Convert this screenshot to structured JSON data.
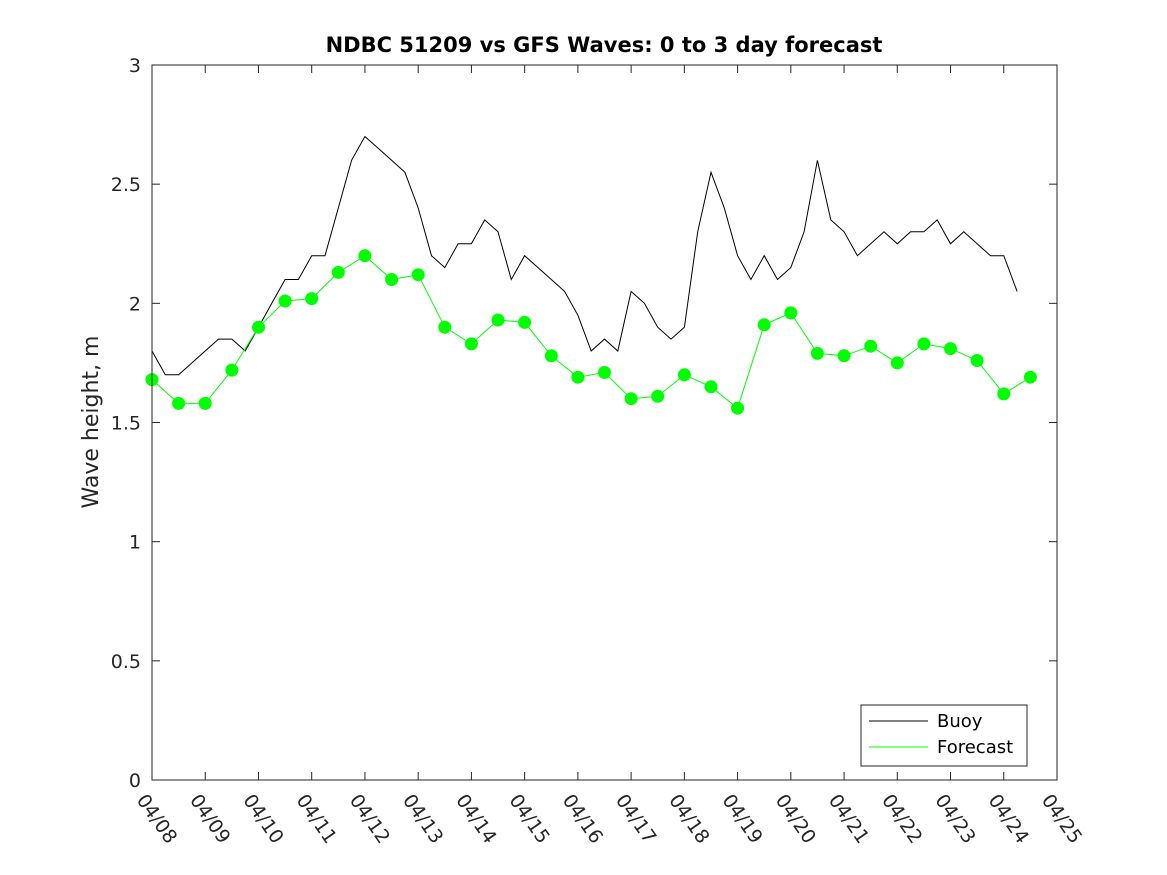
{
  "chart_data": {
    "type": "line",
    "title": "NDBC 51209 vs GFS Waves: 0 to 3 day forecast",
    "xlabel": "",
    "ylabel": "Wave height, m",
    "ylim": [
      0,
      3
    ],
    "xlim": [
      0,
      17
    ],
    "yticks": [
      "0",
      "0.5",
      "1",
      "1.5",
      "2",
      "2.5",
      "3"
    ],
    "xtick_labels": [
      "04/08",
      "04/09",
      "04/10",
      "04/11",
      "04/12",
      "04/13",
      "04/14",
      "04/15",
      "04/16",
      "04/17",
      "04/18",
      "04/19",
      "04/20",
      "04/21",
      "04/22",
      "04/23",
      "04/24",
      "04/25"
    ],
    "legend": {
      "placement": "bottom-right",
      "entries": [
        "Buoy",
        "Forecast"
      ]
    },
    "colors": {
      "buoy": "#000000",
      "forecast": "#00ff00"
    },
    "series": [
      {
        "name": "Buoy",
        "x": [
          0.0,
          0.25,
          0.5,
          0.75,
          1.0,
          1.25,
          1.5,
          1.75,
          2.0,
          2.25,
          2.5,
          2.75,
          3.0,
          3.25,
          3.5,
          3.75,
          4.0,
          4.25,
          4.5,
          4.75,
          5.0,
          5.25,
          5.5,
          5.75,
          6.0,
          6.25,
          6.5,
          6.75,
          7.0,
          7.25,
          7.5,
          7.75,
          8.0,
          8.25,
          8.5,
          8.75,
          9.0,
          9.25,
          9.5,
          9.75,
          10.0,
          10.25,
          10.5,
          10.75,
          11.0,
          11.25,
          11.5,
          11.75,
          12.0,
          12.25,
          12.5,
          12.75,
          13.0,
          13.25,
          13.5,
          13.75,
          14.0,
          14.25,
          14.5,
          14.75,
          15.0,
          15.25,
          15.5,
          15.75,
          16.0,
          16.25
        ],
        "values": [
          1.8,
          1.7,
          1.7,
          1.75,
          1.8,
          1.85,
          1.85,
          1.8,
          1.9,
          2.0,
          2.1,
          2.1,
          2.2,
          2.2,
          2.4,
          2.6,
          2.7,
          2.65,
          2.6,
          2.55,
          2.4,
          2.2,
          2.15,
          2.25,
          2.25,
          2.35,
          2.3,
          2.1,
          2.2,
          2.15,
          2.1,
          2.05,
          1.95,
          1.8,
          1.85,
          1.8,
          2.05,
          2.0,
          1.9,
          1.85,
          1.9,
          2.3,
          2.55,
          2.4,
          2.2,
          2.1,
          2.2,
          2.1,
          2.15,
          2.3,
          2.6,
          2.35,
          2.3,
          2.2,
          2.25,
          2.3,
          2.25,
          2.3,
          2.3,
          2.35,
          2.25,
          2.3,
          2.25,
          2.2,
          2.2,
          2.05
        ]
      },
      {
        "name": "Forecast",
        "x": [
          0.0,
          0.5,
          1.0,
          1.5,
          2.0,
          2.5,
          3.0,
          3.5,
          4.0,
          4.5,
          5.0,
          5.5,
          6.0,
          6.5,
          7.0,
          7.5,
          8.0,
          8.5,
          9.0,
          9.5,
          10.0,
          10.5,
          11.0,
          11.5,
          12.0,
          12.5,
          13.0,
          13.5,
          14.0,
          14.5,
          15.0,
          15.5,
          16.0,
          16.5,
          17.0
        ],
        "values": [
          1.68,
          1.58,
          1.58,
          1.72,
          1.9,
          2.01,
          2.02,
          2.13,
          2.2,
          2.1,
          2.12,
          1.9,
          1.83,
          1.93,
          1.92,
          1.78,
          1.69,
          1.71,
          1.6,
          1.61,
          1.7,
          1.65,
          1.56,
          1.91,
          1.96,
          1.79,
          1.78,
          1.82,
          1.75,
          1.83,
          1.81,
          1.76,
          1.62,
          1.69,
          null
        ]
      }
    ]
  }
}
